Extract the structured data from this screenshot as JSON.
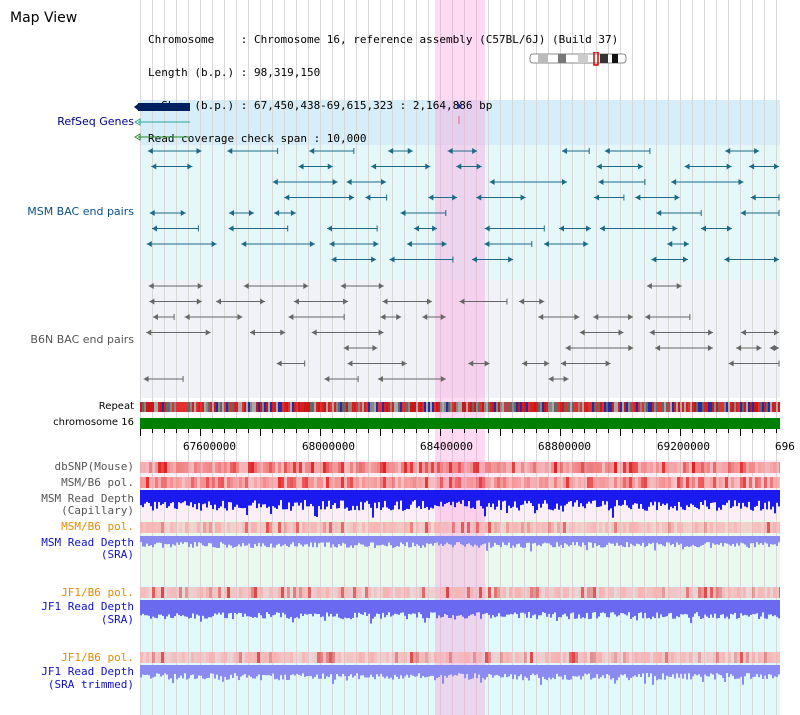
{
  "header": {
    "title": "Map View",
    "info_lines": [
      "Chromosome    : Chromosome 16, reference assembly (C57BL/6J) (Build 37)",
      "Length (b.p.) : 98,319,150",
      "  Show (b.p.) : 67,450,438-69,615,323 : 2,164,886 bp",
      "Read coverage check span : 10,000"
    ]
  },
  "tracks": {
    "refseq": "RefSeq Genes",
    "msm_bac": "MSM BAC end pairs",
    "b6n_bac": "B6N BAC end pairs",
    "repeat": "Repeat",
    "chromosome": "chromosome 16",
    "dbsnp": "dbSNP(Mouse)",
    "msm_b6_pol": "MSM/B6 pol.",
    "msm_read_depth_cap_1": "MSM Read Depth",
    "msm_read_depth_cap_2": "(Capillary)",
    "msm_b6_pol_2": "MSM/B6 pol.",
    "msm_read_depth_sra_1": "MSM Read Depth",
    "msm_read_depth_sra_2": "(SRA)",
    "jf1_b6_pol": "JF1/B6 pol.",
    "jf1_read_depth_sra_1": "JF1 Read Depth",
    "jf1_read_depth_sra_2": "(SRA)",
    "jf1_b6_pol_2": "JF1/B6 pol.",
    "jf1_read_depth_trim_1": "JF1 Read Depth",
    "jf1_read_depth_trim_2": "(SRA trimmed)"
  },
  "scale": {
    "ticks": [
      "67600000",
      "68000000",
      "68400000",
      "68800000",
      "69200000",
      "696"
    ]
  },
  "colors": {
    "refseq_bg": "#d9f0fb",
    "msm_bg": "#e6fbfb",
    "b6n_bg": "#f3f3f9",
    "lower_bg": "#e6fbf6",
    "highlight": "#fbd0ee",
    "chromosome_bar": "#008000"
  }
}
